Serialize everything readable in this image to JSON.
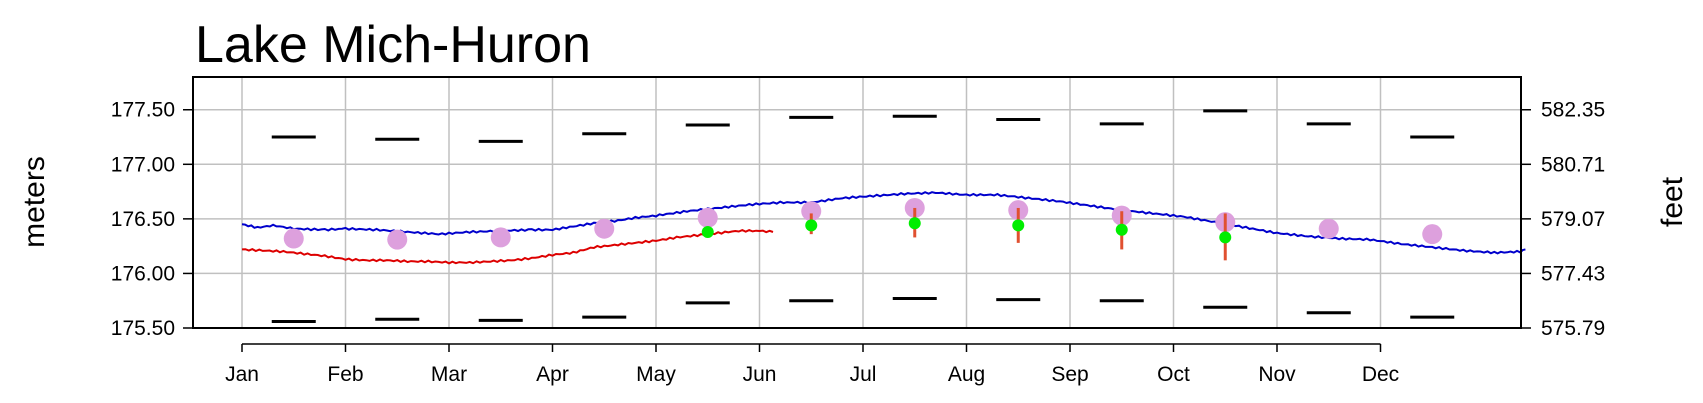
{
  "chart_data": {
    "type": "line",
    "title": "Lake Mich-Huron",
    "ylabel": "meters",
    "y2label": "feet",
    "ylim": [
      175.5,
      177.8
    ],
    "y_ticks": [
      "175.50",
      "176.00",
      "176.50",
      "177.00",
      "177.50"
    ],
    "y2_ticks": [
      "575.79",
      "577.43",
      "579.07",
      "580.71",
      "582.35"
    ],
    "months": [
      "Jan",
      "Feb",
      "Mar",
      "Apr",
      "May",
      "Jun",
      "Jul",
      "Aug",
      "Sep",
      "Oct",
      "Nov",
      "Dec"
    ],
    "record_high": [
      177.25,
      177.23,
      177.21,
      177.28,
      177.36,
      177.43,
      177.44,
      177.41,
      177.37,
      177.49,
      177.37,
      177.25
    ],
    "record_low": [
      175.56,
      175.58,
      175.57,
      175.6,
      175.73,
      175.75,
      175.77,
      175.76,
      175.75,
      175.69,
      175.64,
      175.6
    ],
    "monthly_average": [
      176.32,
      176.31,
      176.33,
      176.41,
      176.51,
      176.57,
      176.6,
      176.58,
      176.53,
      176.47,
      176.41,
      176.36
    ],
    "forecast_most_probable": [
      176.38,
      176.44,
      176.46,
      176.44,
      176.4,
      176.33
    ],
    "forecast_range": [
      [
        176.37,
        176.42
      ],
      [
        176.36,
        176.55
      ],
      [
        176.33,
        176.6
      ],
      [
        176.28,
        176.6
      ],
      [
        176.22,
        176.57
      ],
      [
        176.12,
        176.55
      ]
    ],
    "last_year_line": [
      [
        0,
        176.45
      ],
      [
        0.15,
        176.42
      ],
      [
        0.3,
        176.44
      ],
      [
        0.5,
        176.41
      ],
      [
        0.8,
        176.4
      ],
      [
        1.0,
        176.41
      ],
      [
        1.3,
        176.4
      ],
      [
        1.6,
        176.38
      ],
      [
        1.9,
        176.36
      ],
      [
        2.2,
        176.38
      ],
      [
        2.5,
        176.39
      ],
      [
        2.8,
        176.4
      ],
      [
        3.0,
        176.4
      ],
      [
        3.2,
        176.43
      ],
      [
        3.4,
        176.46
      ],
      [
        3.6,
        176.48
      ],
      [
        3.8,
        176.51
      ],
      [
        4.0,
        176.53
      ],
      [
        4.3,
        176.57
      ],
      [
        4.6,
        176.6
      ],
      [
        4.9,
        176.63
      ],
      [
        5.2,
        176.65
      ],
      [
        5.5,
        176.65
      ],
      [
        5.8,
        176.69
      ],
      [
        6.1,
        176.71
      ],
      [
        6.4,
        176.73
      ],
      [
        6.7,
        176.74
      ],
      [
        7.0,
        176.72
      ],
      [
        7.3,
        176.72
      ],
      [
        7.6,
        176.69
      ],
      [
        7.9,
        176.66
      ],
      [
        8.2,
        176.62
      ],
      [
        8.5,
        176.58
      ],
      [
        8.8,
        176.55
      ],
      [
        9.1,
        176.52
      ],
      [
        9.4,
        176.47
      ],
      [
        9.7,
        176.42
      ],
      [
        10.0,
        176.37
      ],
      [
        10.3,
        176.34
      ],
      [
        10.6,
        176.32
      ],
      [
        10.9,
        176.31
      ],
      [
        11.2,
        176.27
      ],
      [
        11.5,
        176.24
      ],
      [
        11.8,
        176.21
      ],
      [
        12.1,
        176.19
      ],
      [
        12.35,
        176.2
      ],
      [
        12.4,
        176.22
      ]
    ],
    "current_year_line": [
      [
        0,
        176.22
      ],
      [
        0.2,
        176.21
      ],
      [
        0.4,
        176.2
      ],
      [
        0.6,
        176.18
      ],
      [
        0.8,
        176.16
      ],
      [
        1.0,
        176.13
      ],
      [
        1.2,
        176.12
      ],
      [
        1.4,
        176.12
      ],
      [
        1.6,
        176.11
      ],
      [
        1.8,
        176.11
      ],
      [
        2.0,
        176.1
      ],
      [
        2.2,
        176.1
      ],
      [
        2.4,
        176.11
      ],
      [
        2.6,
        176.12
      ],
      [
        2.8,
        176.14
      ],
      [
        3.0,
        176.17
      ],
      [
        3.2,
        176.19
      ],
      [
        3.4,
        176.24
      ],
      [
        3.6,
        176.26
      ],
      [
        3.8,
        176.28
      ],
      [
        4.0,
        176.3
      ],
      [
        4.2,
        176.33
      ],
      [
        4.4,
        176.35
      ],
      [
        4.6,
        176.37
      ],
      [
        4.8,
        176.39
      ],
      [
        5.0,
        176.39
      ],
      [
        5.13,
        176.38
      ]
    ]
  }
}
